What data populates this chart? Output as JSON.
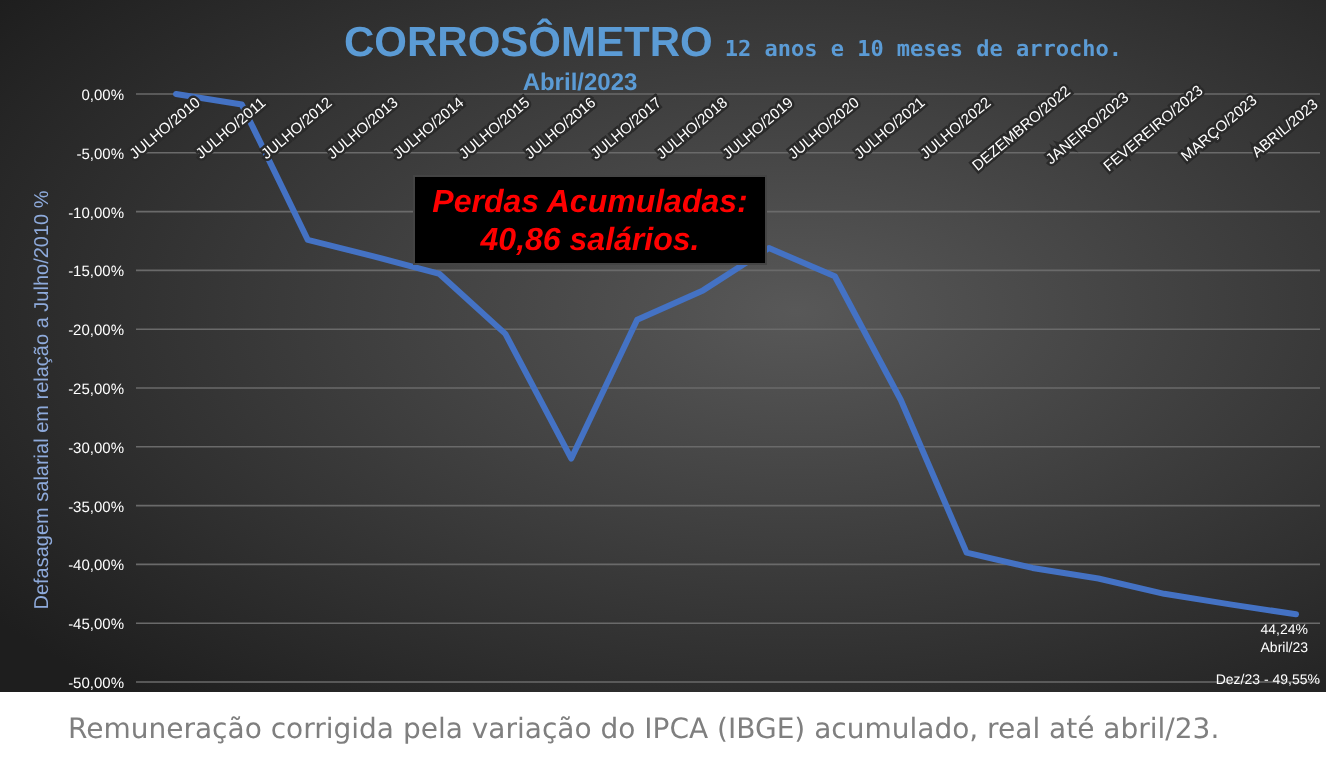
{
  "chart_data": {
    "type": "line",
    "title": "CORROSÔMETRO",
    "subtitle": "12 anos e 10 meses de arrocho.",
    "ylabel": "Defasagem salarial em relação a Julho/2010 %",
    "categories": [
      "JULHO/2010",
      "JULHO/2011",
      "JULHO/2012",
      "JULHO/2013",
      "JULHO/2014",
      "JULHO/2015",
      "JULHO/2016",
      "JULHO/2017",
      "JULHO/2018",
      "JULHO/2019",
      "JULHO/2020",
      "JULHO/2021",
      "JULHO/2022",
      "DEZEMBRO/2022",
      "JANEIRO/2023",
      "FEVEREIRO/2023",
      "MARÇO/2023",
      "ABRIL/2023"
    ],
    "series": [
      {
        "color": "#4472c4",
        "values": [
          0,
          -0.9,
          -12.4,
          -13.8,
          -15.3,
          -20.4,
          -31.0,
          -19.2,
          -16.7,
          -13.1,
          -15.5,
          -26.0,
          -39.0,
          -40.3,
          -41.2,
          -42.5,
          -43.4,
          -44.24
        ]
      }
    ],
    "ylim": [
      -50,
      0
    ],
    "yticks": [
      {
        "value": 0,
        "label": "0,00%"
      },
      {
        "value": -5,
        "label": "-5,00%"
      },
      {
        "value": -10,
        "label": "-10,00%"
      },
      {
        "value": -15,
        "label": "-15,00%"
      },
      {
        "value": -20,
        "label": "-20,00%"
      },
      {
        "value": -25,
        "label": "-25,00%"
      },
      {
        "value": -30,
        "label": "-30,00%"
      },
      {
        "value": -35,
        "label": "-35,00%"
      },
      {
        "value": -40,
        "label": "-40,00%"
      },
      {
        "value": -45,
        "label": "-45,00%"
      },
      {
        "value": -50,
        "label": "-50,00%"
      }
    ],
    "grid": "y",
    "marker": "none",
    "line_style": "solid",
    "annotations": [
      "Abril/2023",
      "Perdas Acumuladas:\n40,86 salários.",
      "Remuneração corrigida pela variação do IPCA (IBGE) acumulado, real até abril/23.",
      "Dez/23 - 49,55%",
      {
        "text": "44,24%\nAbril/23",
        "x": "ABRIL/2023",
        "y": -44.24
      }
    ]
  }
}
